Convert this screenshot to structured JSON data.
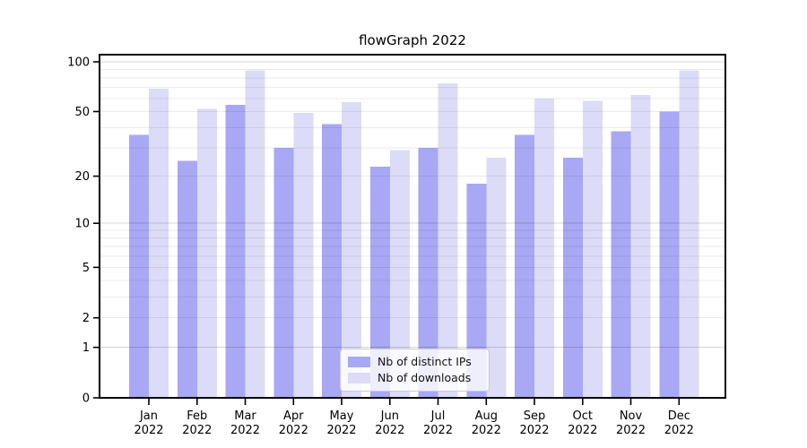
{
  "title": "flowGraph 2022",
  "chart_data": {
    "type": "bar",
    "title": "flowGraph 2022",
    "categories": [
      "Jan",
      "Feb",
      "Mar",
      "Apr",
      "May",
      "Jun",
      "Jul",
      "Aug",
      "Sep",
      "Oct",
      "Nov",
      "Dec"
    ],
    "category_year": "2022",
    "series": [
      {
        "name": "Nb of distinct IPs",
        "color": "#a8a8f4",
        "values": [
          36,
          25,
          55,
          30,
          42,
          23,
          30,
          18,
          36,
          26,
          38,
          50
        ]
      },
      {
        "name": "Nb of downloads",
        "color": "#dcdcf8",
        "values": [
          69,
          52,
          89,
          49,
          57,
          29,
          74,
          26,
          60,
          58,
          63,
          89
        ]
      }
    ],
    "y_axis": {
      "scale": "log(v+1)",
      "tick_labels": [
        "100",
        "50",
        "20",
        "10",
        "5",
        "2",
        "1",
        "0"
      ],
      "ticks": [
        100,
        50,
        20,
        10,
        5,
        2,
        1,
        0
      ],
      "major_gridlines": [
        1,
        10,
        100
      ],
      "minor_gridlines": [
        2,
        3,
        4,
        5,
        6,
        7,
        8,
        9,
        20,
        30,
        40,
        50,
        60,
        70,
        80,
        90
      ],
      "top_value": 110
    },
    "legend_position": "lower-center-inside",
    "grid": true
  },
  "colors": {
    "bar_dark": "#a8a8f4",
    "bar_light": "#dcdcf8",
    "grid_minor": "rgba(0,0,0,0.08)",
    "grid_major": "rgba(0,0,0,0.17)",
    "axis": "#000000",
    "legend_border": "#cccccc",
    "background": "#ffffff"
  }
}
